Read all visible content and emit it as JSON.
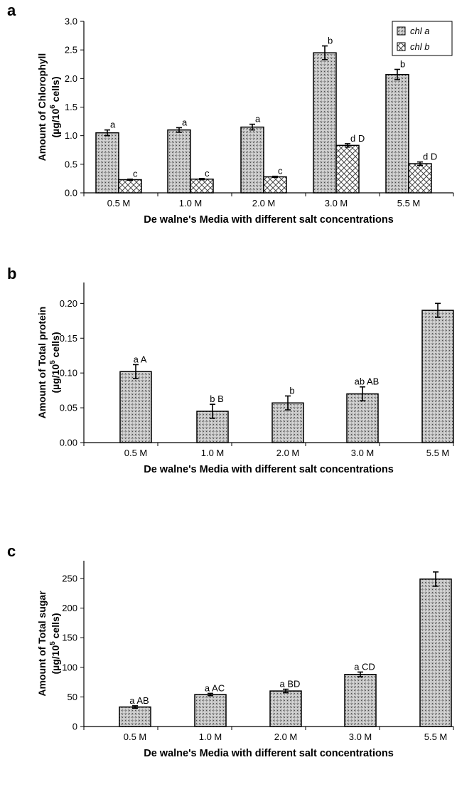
{
  "chart_data": [
    {
      "type": "bar",
      "panel": "a",
      "categories": [
        "0.5 M",
        "1.0 M",
        "2.0 M",
        "3.0 M",
        "5.5 M"
      ],
      "series": [
        {
          "name": "chl a",
          "values": [
            1.05,
            1.1,
            1.15,
            2.45,
            2.07
          ],
          "errors": [
            0.05,
            0.04,
            0.05,
            0.12,
            0.09
          ],
          "labels": [
            "a",
            "a",
            "a",
            "b",
            "b"
          ]
        },
        {
          "name": "chl b",
          "values": [
            0.23,
            0.24,
            0.28,
            0.83,
            0.51
          ],
          "errors": [
            0.01,
            0.01,
            0.01,
            0.03,
            0.03
          ],
          "labels": [
            "c",
            "c",
            "c",
            "d D",
            "d D"
          ]
        }
      ],
      "xlabel": "De walne's Media with different salt concentrations",
      "ylabel_line1": "Amount of Chlorophyll",
      "ylabel_line2_pre": "(µg/10",
      "ylabel_sup": "6",
      "ylabel_line2_post": " cells)",
      "ylim": [
        0,
        3.0
      ],
      "yticks": [
        "0.0",
        "0.5",
        "1.0",
        "1.5",
        "2.0",
        "2.5",
        "3.0"
      ],
      "legend": "top-right"
    },
    {
      "type": "bar",
      "panel": "b",
      "categories": [
        "0.5 M",
        "1.0 M",
        "2.0 M",
        "3.0 M",
        "5.5 M"
      ],
      "series": [
        {
          "values": [
            0.102,
            0.045,
            0.057,
            0.07,
            0.19
          ],
          "errors": [
            0.01,
            0.01,
            0.01,
            0.01,
            0.01
          ],
          "labels": [
            "a A",
            "b B",
            "b",
            "ab AB",
            ""
          ]
        }
      ],
      "xlabel": "De walne's Media with different salt concentrations",
      "ylabel_line1": "Amount of Total protein",
      "ylabel_line2_pre": "(µg/10",
      "ylabel_sup": "5",
      "ylabel_line2_post": " cells)",
      "ylim": [
        0,
        0.23
      ],
      "yticks": [
        "0.00",
        "0.05",
        "0.10",
        "0.15",
        "0.20"
      ]
    },
    {
      "type": "bar",
      "panel": "c",
      "categories": [
        "0.5 M",
        "1.0 M",
        "2.0 M",
        "3.0 M",
        "5.5 M"
      ],
      "series": [
        {
          "values": [
            33,
            54,
            60,
            88,
            249
          ],
          "errors": [
            2,
            2,
            3,
            4,
            12
          ],
          "labels": [
            "a AB",
            "a AC",
            "a BD",
            "a CD",
            ""
          ]
        }
      ],
      "xlabel": "De walne's Media with different salt concentrations",
      "ylabel_line1": "Amount of Total sugar",
      "ylabel_line2_pre": "(µg/10",
      "ylabel_sup": "5",
      "ylabel_line2_post": " cells)",
      "ylim": [
        0,
        280
      ],
      "yticks": [
        "0",
        "50",
        "100",
        "150",
        "200",
        "250"
      ]
    }
  ]
}
